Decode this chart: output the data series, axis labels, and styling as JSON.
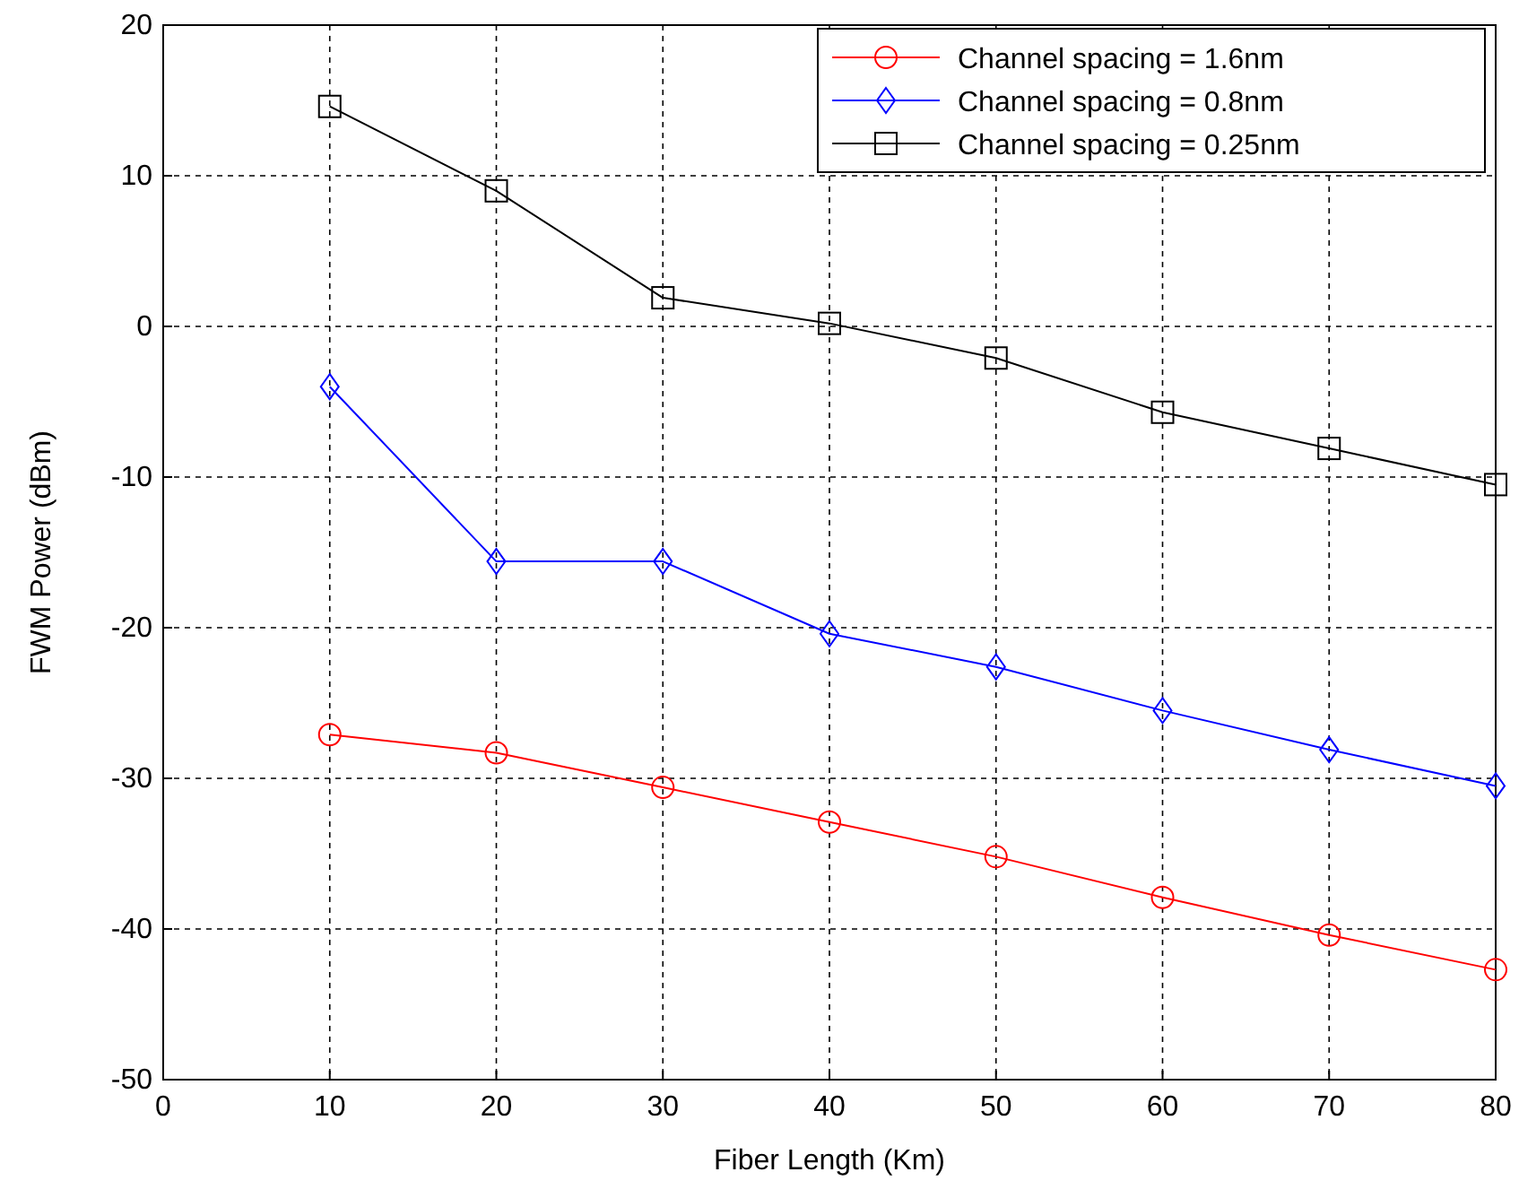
{
  "chart_data": {
    "type": "line",
    "xlabel": "Fiber Length (Km)",
    "ylabel": "FWM Power (dBm)",
    "x": [
      10,
      20,
      30,
      40,
      50,
      60,
      70,
      80
    ],
    "xlim": [
      0,
      80
    ],
    "xticks": [
      0,
      10,
      20,
      30,
      40,
      50,
      60,
      70,
      80
    ],
    "ylim": [
      -50,
      20
    ],
    "yticks": [
      -50,
      -40,
      -30,
      -20,
      -10,
      0,
      10,
      20
    ],
    "grid": true,
    "legend": "top right",
    "line_style": "solid",
    "series": [
      {
        "name": "Channel spacing = 1.6nm",
        "color": "#ff0000",
        "marker": "circle",
        "values": [
          -27.1,
          -28.3,
          -30.6,
          -32.9,
          -35.2,
          -37.9,
          -40.4,
          -42.7
        ]
      },
      {
        "name": "Channel spacing = 0.8nm",
        "color": "#0000ff",
        "marker": "diamond",
        "values": [
          -4.0,
          -15.6,
          -15.6,
          -20.4,
          -22.6,
          -25.5,
          -28.1,
          -30.5
        ]
      },
      {
        "name": "Channel spacing = 0.25nm",
        "color": "#000000",
        "marker": "square",
        "values": [
          14.6,
          9.0,
          1.9,
          0.2,
          -2.1,
          -5.7,
          -8.1,
          -10.5
        ]
      }
    ]
  }
}
